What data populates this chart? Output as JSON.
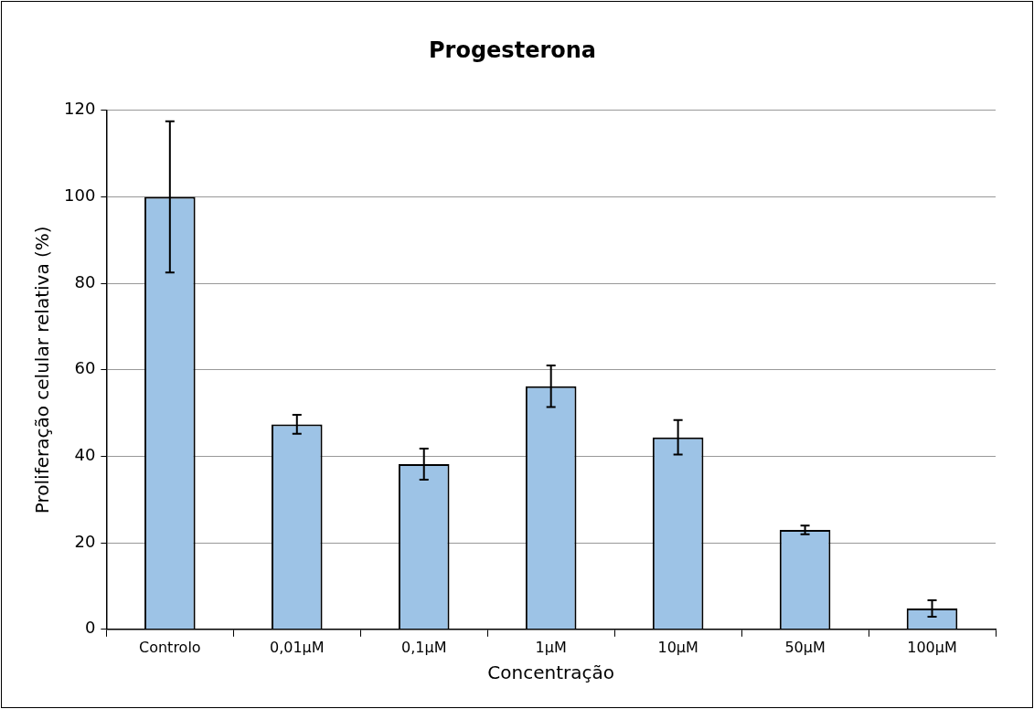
{
  "chart_data": {
    "type": "bar",
    "title": "Progesterona",
    "xlabel": "Concentração",
    "ylabel": "Proliferação celular relativa (%)",
    "categories": [
      "Controlo",
      "0,01µM",
      "0,1µM",
      "1µM",
      "10µM",
      "50µM",
      "100µM"
    ],
    "values": [
      100,
      47.4,
      38.2,
      56.2,
      44.4,
      23.0,
      4.8
    ],
    "errors": [
      17.5,
      2.2,
      3.6,
      4.8,
      4.0,
      1.0,
      1.9
    ],
    "color": "#9dc3e6",
    "ylim": [
      0,
      120
    ],
    "yticks": [
      0,
      20,
      40,
      60,
      80,
      100,
      120
    ],
    "grid": "y",
    "legend": false
  }
}
